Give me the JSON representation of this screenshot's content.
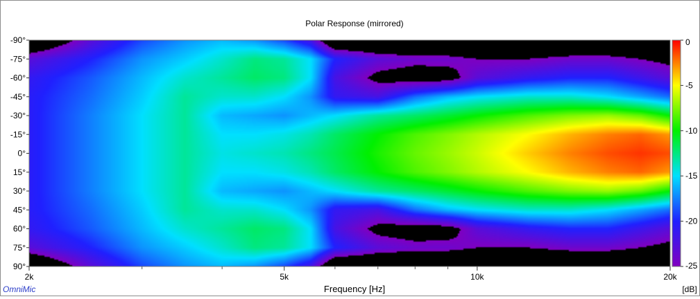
{
  "chart_data": {
    "type": "heatmap",
    "title": "Polar Response (mirrored)",
    "xlabel": "Frequency [Hz]",
    "ylabel": "",
    "x_scale": "log",
    "xlim": [
      2000,
      20000
    ],
    "x_ticks": [
      {
        "value": 2000,
        "label": "2k"
      },
      {
        "value": 5000,
        "label": "5k"
      },
      {
        "value": 10000,
        "label": "10k"
      },
      {
        "value": 20000,
        "label": "20k"
      }
    ],
    "x_minor_ticks": [
      3000,
      4000,
      6000,
      7000,
      8000,
      9000
    ],
    "ylim": [
      -90,
      90
    ],
    "y_ticks": [
      {
        "value": -90,
        "label": "-90°"
      },
      {
        "value": -75,
        "label": "-75°"
      },
      {
        "value": -60,
        "label": "-60°"
      },
      {
        "value": -45,
        "label": "-45°"
      },
      {
        "value": -30,
        "label": "-30°"
      },
      {
        "value": -15,
        "label": "-15°"
      },
      {
        "value": 0,
        "label": "0°"
      },
      {
        "value": 15,
        "label": "15°"
      },
      {
        "value": 30,
        "label": "30°"
      },
      {
        "value": 45,
        "label": "45°"
      },
      {
        "value": 60,
        "label": "60°"
      },
      {
        "value": 75,
        "label": "75°"
      },
      {
        "value": 90,
        "label": "90°"
      }
    ],
    "colorbar": {
      "unit": "[dB]",
      "range": [
        -25,
        0
      ],
      "ticks": [
        {
          "value": 0,
          "label": "0"
        },
        {
          "value": -5,
          "label": "-5"
        },
        {
          "value": -10,
          "label": "-10"
        },
        {
          "value": -15,
          "label": "-15"
        },
        {
          "value": -20,
          "label": "-20"
        },
        {
          "value": -25,
          "label": "-25"
        }
      ],
      "colors": [
        "#8000c0",
        "#2020ff",
        "#00e0ff",
        "#00f000",
        "#ffff00",
        "#ff0000"
      ]
    },
    "below_range_color": "#000000",
    "mirrored": true,
    "series": [
      {
        "freq": 2000,
        "levels_db": [
          -30,
          -23,
          -21,
          -20.5,
          -20.5,
          -20.5,
          -20.5
        ]
      },
      {
        "freq": 2500,
        "levels_db": [
          -23,
          -20,
          -18.5,
          -18,
          -17.5,
          -17.5,
          -17.5
        ]
      },
      {
        "freq": 3000,
        "levels_db": [
          -19,
          -17,
          -16,
          -15.5,
          -15,
          -15,
          -15
        ]
      },
      {
        "freq": 3500,
        "levels_db": [
          -17,
          -15.5,
          -14,
          -13,
          -13,
          -13,
          -13
        ]
      },
      {
        "freq": 4000,
        "levels_db": [
          -16,
          -14,
          -13,
          -14,
          -16,
          -15,
          -14.5
        ]
      },
      {
        "freq": 4500,
        "levels_db": [
          -17,
          -12.5,
          -12,
          -14,
          -16.5,
          -15,
          -14
        ]
      },
      {
        "freq": 5000,
        "levels_db": [
          -19,
          -13,
          -12.5,
          -15,
          -17,
          -14.5,
          -13.5
        ]
      },
      {
        "freq": 5500,
        "levels_db": [
          -22,
          -15,
          -15,
          -17,
          -16,
          -13.5,
          -12.5
        ]
      },
      {
        "freq": 6000,
        "levels_db": [
          -30,
          -20,
          -22,
          -21,
          -15,
          -12,
          -11.5
        ]
      },
      {
        "freq": 7000,
        "levels_db": [
          -30,
          -23,
          -26,
          -22,
          -13,
          -10,
          -9.5
        ]
      },
      {
        "freq": 8000,
        "levels_db": [
          -30,
          -24,
          -27,
          -18,
          -12,
          -8.5,
          -8
        ]
      },
      {
        "freq": 9000,
        "levels_db": [
          -30,
          -24,
          -26.5,
          -16,
          -11,
          -7.5,
          -7
        ]
      },
      {
        "freq": 10000,
        "levels_db": [
          -30,
          -25,
          -23,
          -15,
          -10,
          -6.5,
          -6
        ]
      },
      {
        "freq": 12000,
        "levels_db": [
          -30,
          -25,
          -21,
          -14,
          -8.5,
          -5,
          -4
        ]
      },
      {
        "freq": 14000,
        "levels_db": [
          -30,
          -24,
          -20,
          -14,
          -7.5,
          -3.5,
          -2.5
        ]
      },
      {
        "freq": 16000,
        "levels_db": [
          -30,
          -24,
          -20,
          -15,
          -7,
          -2.5,
          -1.5
        ]
      },
      {
        "freq": 18000,
        "levels_db": [
          -30,
          -25,
          -21.5,
          -16.5,
          -8,
          -2,
          -1
        ]
      },
      {
        "freq": 20000,
        "levels_db": [
          -30,
          -26,
          -23,
          -18,
          -10,
          -3,
          -1.5
        ]
      }
    ],
    "series_angles": [
      90,
      75,
      60,
      45,
      30,
      15,
      0
    ]
  },
  "watermark": "OmniMic"
}
